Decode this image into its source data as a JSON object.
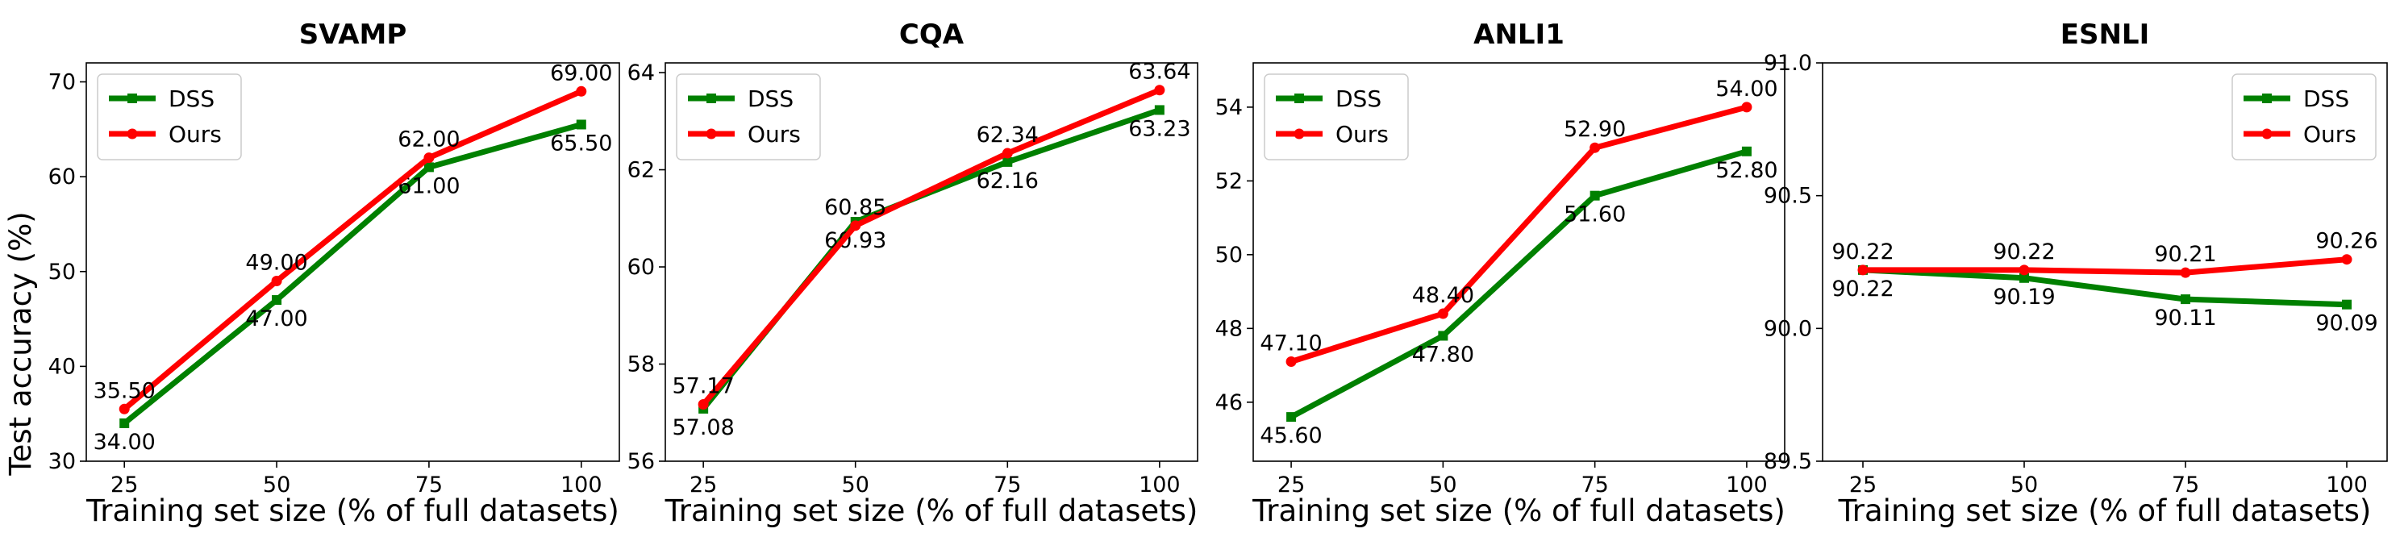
{
  "figure": {
    "ylabel": "Test accuracy (%)",
    "colors": {
      "dss": "#008000",
      "ours": "#ff0000"
    }
  },
  "chart_data": [
    {
      "type": "line",
      "title": "SVAMP",
      "xlabel": "Training set size (% of full datasets)",
      "ylabel": "Test accuracy (%)",
      "x": [
        25,
        50,
        75,
        100
      ],
      "xticks": [
        "25",
        "50",
        "75",
        "100"
      ],
      "ylim": [
        30,
        72
      ],
      "yticks": [
        "30",
        "40",
        "50",
        "60",
        "70"
      ],
      "yticks_values": [
        30,
        40,
        50,
        60,
        70
      ],
      "legend_position": "top-left",
      "series": [
        {
          "name": "DSS",
          "values": [
            34.0,
            47.0,
            61.0,
            65.5
          ],
          "labels": [
            "34.00",
            "47.00",
            "61.00",
            "65.50"
          ],
          "label_side": [
            "below",
            "below",
            "below",
            "below"
          ]
        },
        {
          "name": "Ours",
          "values": [
            35.5,
            49.0,
            62.0,
            69.0
          ],
          "labels": [
            "35.50",
            "49.00",
            "62.00",
            "69.00"
          ],
          "label_side": [
            "above",
            "above",
            "above",
            "above"
          ]
        }
      ]
    },
    {
      "type": "line",
      "title": "CQA",
      "xlabel": "Training set size (% of full datasets)",
      "ylabel": "",
      "x": [
        25,
        50,
        75,
        100
      ],
      "xticks": [
        "25",
        "50",
        "75",
        "100"
      ],
      "ylim": [
        56,
        64.2
      ],
      "yticks": [
        "56",
        "58",
        "60",
        "62",
        "64"
      ],
      "yticks_values": [
        56,
        58,
        60,
        62,
        64
      ],
      "legend_position": "top-left",
      "series": [
        {
          "name": "DSS",
          "values": [
            57.08,
            60.93,
            62.16,
            63.23
          ],
          "labels": [
            "57.08",
            "60.93",
            "62.16",
            "63.23"
          ],
          "label_side": [
            "below",
            "below",
            "below",
            "below"
          ]
        },
        {
          "name": "Ours",
          "values": [
            57.17,
            60.85,
            62.34,
            63.64
          ],
          "labels": [
            "57.17",
            "60.85",
            "62.34",
            "63.64"
          ],
          "label_side": [
            "above",
            "above",
            "above",
            "above"
          ]
        }
      ]
    },
    {
      "type": "line",
      "title": "ANLI1",
      "xlabel": "Training set size (% of full datasets)",
      "ylabel": "",
      "x": [
        25,
        50,
        75,
        100
      ],
      "xticks": [
        "25",
        "50",
        "75",
        "100"
      ],
      "ylim": [
        44.4,
        55.2
      ],
      "yticks": [
        "46",
        "48",
        "50",
        "52",
        "54"
      ],
      "yticks_values": [
        46,
        48,
        50,
        52,
        54
      ],
      "legend_position": "top-left",
      "series": [
        {
          "name": "DSS",
          "values": [
            45.6,
            47.8,
            51.6,
            52.8
          ],
          "labels": [
            "45.60",
            "47.80",
            "51.60",
            "52.80"
          ],
          "label_side": [
            "below",
            "below",
            "below",
            "below"
          ]
        },
        {
          "name": "Ours",
          "values": [
            47.1,
            48.4,
            52.9,
            54.0
          ],
          "labels": [
            "47.10",
            "48.40",
            "52.90",
            "54.00"
          ],
          "label_side": [
            "above",
            "above",
            "above",
            "above"
          ]
        }
      ]
    },
    {
      "type": "line",
      "title": "ESNLI",
      "xlabel": "Training set size (% of full datasets)",
      "ylabel": "",
      "x": [
        25,
        50,
        75,
        100
      ],
      "xticks": [
        "25",
        "50",
        "75",
        "100"
      ],
      "ylim": [
        89.5,
        91.0
      ],
      "yticks": [
        "89.5",
        "90.0",
        "90.5",
        "91.0"
      ],
      "yticks_values": [
        89.5,
        90.0,
        90.5,
        91.0
      ],
      "legend_position": "top-right",
      "series": [
        {
          "name": "DSS",
          "values": [
            90.22,
            90.19,
            90.11,
            90.09
          ],
          "labels": [
            "90.22",
            "90.19",
            "90.11",
            "90.09"
          ],
          "label_side": [
            "below",
            "below",
            "below",
            "below"
          ]
        },
        {
          "name": "Ours",
          "values": [
            90.22,
            90.22,
            90.21,
            90.26
          ],
          "labels": [
            "90.22",
            "90.22",
            "90.21",
            "90.26"
          ],
          "label_side": [
            "above",
            "above",
            "above",
            "above"
          ]
        }
      ]
    }
  ]
}
